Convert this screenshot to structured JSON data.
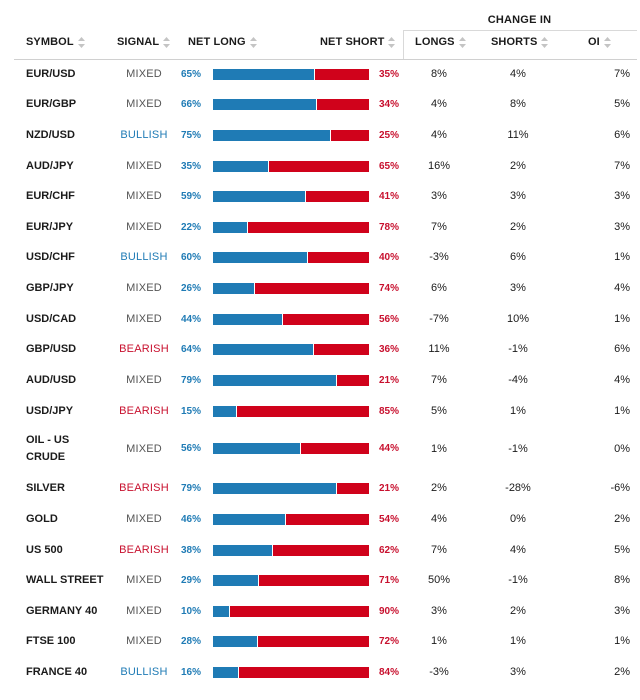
{
  "headers": {
    "change_in": "CHANGE IN",
    "symbol": "SYMBOL",
    "signal": "SIGNAL",
    "net_long": "NET LONG",
    "net_short": "NET SHORT",
    "longs": "LONGS",
    "shorts": "SHORTS",
    "oi": "OI"
  },
  "colors": {
    "long": "#1f7bb5",
    "short": "#d0021b",
    "bullish": "#1f7bb5",
    "bearish": "#c8102e",
    "mixed": "#555555"
  },
  "rows": [
    {
      "symbol": "EUR/USD",
      "signal": "MIXED",
      "net_long": "65%",
      "net_short": "35%",
      "longs": "8%",
      "shorts": "4%",
      "oi": "7%",
      "long_fraction": 0.65
    },
    {
      "symbol": "EUR/GBP",
      "signal": "MIXED",
      "net_long": "66%",
      "net_short": "34%",
      "longs": "4%",
      "shorts": "8%",
      "oi": "5%",
      "long_fraction": 0.66
    },
    {
      "symbol": "NZD/USD",
      "signal": "BULLISH",
      "net_long": "75%",
      "net_short": "25%",
      "longs": "4%",
      "shorts": "11%",
      "oi": "6%",
      "long_fraction": 0.75
    },
    {
      "symbol": "AUD/JPY",
      "signal": "MIXED",
      "net_long": "35%",
      "net_short": "65%",
      "longs": "16%",
      "shorts": "2%",
      "oi": "7%",
      "long_fraction": 0.35
    },
    {
      "symbol": "EUR/CHF",
      "signal": "MIXED",
      "net_long": "59%",
      "net_short": "41%",
      "longs": "3%",
      "shorts": "3%",
      "oi": "3%",
      "long_fraction": 0.59
    },
    {
      "symbol": "EUR/JPY",
      "signal": "MIXED",
      "net_long": "22%",
      "net_short": "78%",
      "longs": "7%",
      "shorts": "2%",
      "oi": "3%",
      "long_fraction": 0.22
    },
    {
      "symbol": "USD/CHF",
      "signal": "BULLISH",
      "net_long": "60%",
      "net_short": "40%",
      "longs": "-3%",
      "shorts": "6%",
      "oi": "1%",
      "long_fraction": 0.6
    },
    {
      "symbol": "GBP/JPY",
      "signal": "MIXED",
      "net_long": "26%",
      "net_short": "74%",
      "longs": "6%",
      "shorts": "3%",
      "oi": "4%",
      "long_fraction": 0.26
    },
    {
      "symbol": "USD/CAD",
      "signal": "MIXED",
      "net_long": "44%",
      "net_short": "56%",
      "longs": "-7%",
      "shorts": "10%",
      "oi": "1%",
      "long_fraction": 0.44
    },
    {
      "symbol": "GBP/USD",
      "signal": "BEARISH",
      "net_long": "64%",
      "net_short": "36%",
      "longs": "11%",
      "shorts": "-1%",
      "oi": "6%",
      "long_fraction": 0.64
    },
    {
      "symbol": "AUD/USD",
      "signal": "MIXED",
      "net_long": "79%",
      "net_short": "21%",
      "longs": "7%",
      "shorts": "-4%",
      "oi": "4%",
      "long_fraction": 0.79
    },
    {
      "symbol": "USD/JPY",
      "signal": "BEARISH",
      "net_long": "15%",
      "net_short": "85%",
      "longs": "5%",
      "shorts": "1%",
      "oi": "1%",
      "long_fraction": 0.15
    },
    {
      "symbol": "OIL - US CRUDE",
      "signal": "MIXED",
      "net_long": "56%",
      "net_short": "44%",
      "longs": "1%",
      "shorts": "-1%",
      "oi": "0%",
      "long_fraction": 0.56
    },
    {
      "symbol": "SILVER",
      "signal": "BEARISH",
      "net_long": "79%",
      "net_short": "21%",
      "longs": "2%",
      "shorts": "-28%",
      "oi": "-6%",
      "long_fraction": 0.79
    },
    {
      "symbol": "GOLD",
      "signal": "MIXED",
      "net_long": "46%",
      "net_short": "54%",
      "longs": "4%",
      "shorts": "0%",
      "oi": "2%",
      "long_fraction": 0.46
    },
    {
      "symbol": "US 500",
      "signal": "BEARISH",
      "net_long": "38%",
      "net_short": "62%",
      "longs": "7%",
      "shorts": "4%",
      "oi": "5%",
      "long_fraction": 0.38
    },
    {
      "symbol": "WALL STREET",
      "signal": "MIXED",
      "net_long": "29%",
      "net_short": "71%",
      "longs": "50%",
      "shorts": "-1%",
      "oi": "8%",
      "long_fraction": 0.29
    },
    {
      "symbol": "GERMANY 40",
      "signal": "MIXED",
      "net_long": "10%",
      "net_short": "90%",
      "longs": "3%",
      "shorts": "2%",
      "oi": "3%",
      "long_fraction": 0.1
    },
    {
      "symbol": "FTSE 100",
      "signal": "MIXED",
      "net_long": "28%",
      "net_short": "72%",
      "longs": "1%",
      "shorts": "1%",
      "oi": "1%",
      "long_fraction": 0.28
    },
    {
      "symbol": "FRANCE 40",
      "signal": "BULLISH",
      "net_long": "16%",
      "net_short": "84%",
      "longs": "-3%",
      "shorts": "3%",
      "oi": "2%",
      "long_fraction": 0.16
    }
  ]
}
